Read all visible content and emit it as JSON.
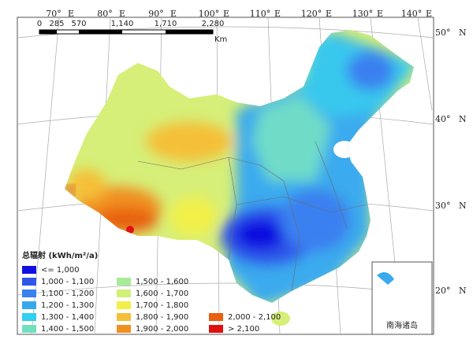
{
  "graticule": {
    "longitudes": [
      {
        "degree": "70°",
        "hemisphere": "E"
      },
      {
        "degree": "80°",
        "hemisphere": "E"
      },
      {
        "degree": "90°",
        "hemisphere": "E"
      },
      {
        "degree": "100°",
        "hemisphere": "E"
      },
      {
        "degree": "110°",
        "hemisphere": "E"
      },
      {
        "degree": "120°",
        "hemisphere": "E"
      },
      {
        "degree": "130°",
        "hemisphere": "E"
      },
      {
        "degree": "140°",
        "hemisphere": "E"
      }
    ],
    "latitudes": [
      {
        "degree": "50°",
        "hemisphere": "N"
      },
      {
        "degree": "40°",
        "hemisphere": "N"
      },
      {
        "degree": "30°",
        "hemisphere": "N"
      },
      {
        "degree": "20°",
        "hemisphere": "N"
      }
    ]
  },
  "scale_bar": {
    "labels": [
      "0",
      "285",
      "570",
      "1,140",
      "1,710",
      "2,280"
    ],
    "unit": "Km"
  },
  "legend": {
    "title": "总辐射 (kWh/m²/a)",
    "items": [
      {
        "label": "<= 1,000",
        "color": "#1010e0"
      },
      {
        "label": "1,000 - 1,100",
        "color": "#2f55ea"
      },
      {
        "label": "1,100 - 1,200",
        "color": "#3a80f0"
      },
      {
        "label": "1,200 - 1,300",
        "color": "#38a8ee"
      },
      {
        "label": "1,300 - 1,400",
        "color": "#30d0f0"
      },
      {
        "label": "1,400 - 1,500",
        "color": "#70e0c0"
      },
      {
        "label": "1,500 - 1,600",
        "color": "#a8ea98"
      },
      {
        "label": "1,600 - 1,700",
        "color": "#d2ef78"
      },
      {
        "label": "1,700 - 1,800",
        "color": "#f2f048"
      },
      {
        "label": "1,800 - 1,900",
        "color": "#f5c038"
      },
      {
        "label": "1,900 - 2,000",
        "color": "#f09020"
      },
      {
        "label": "2,000 - 2,100",
        "color": "#e86010"
      },
      {
        "label": "> 2,100",
        "color": "#e01010"
      }
    ]
  },
  "inset": {
    "label": "南海诸岛"
  }
}
